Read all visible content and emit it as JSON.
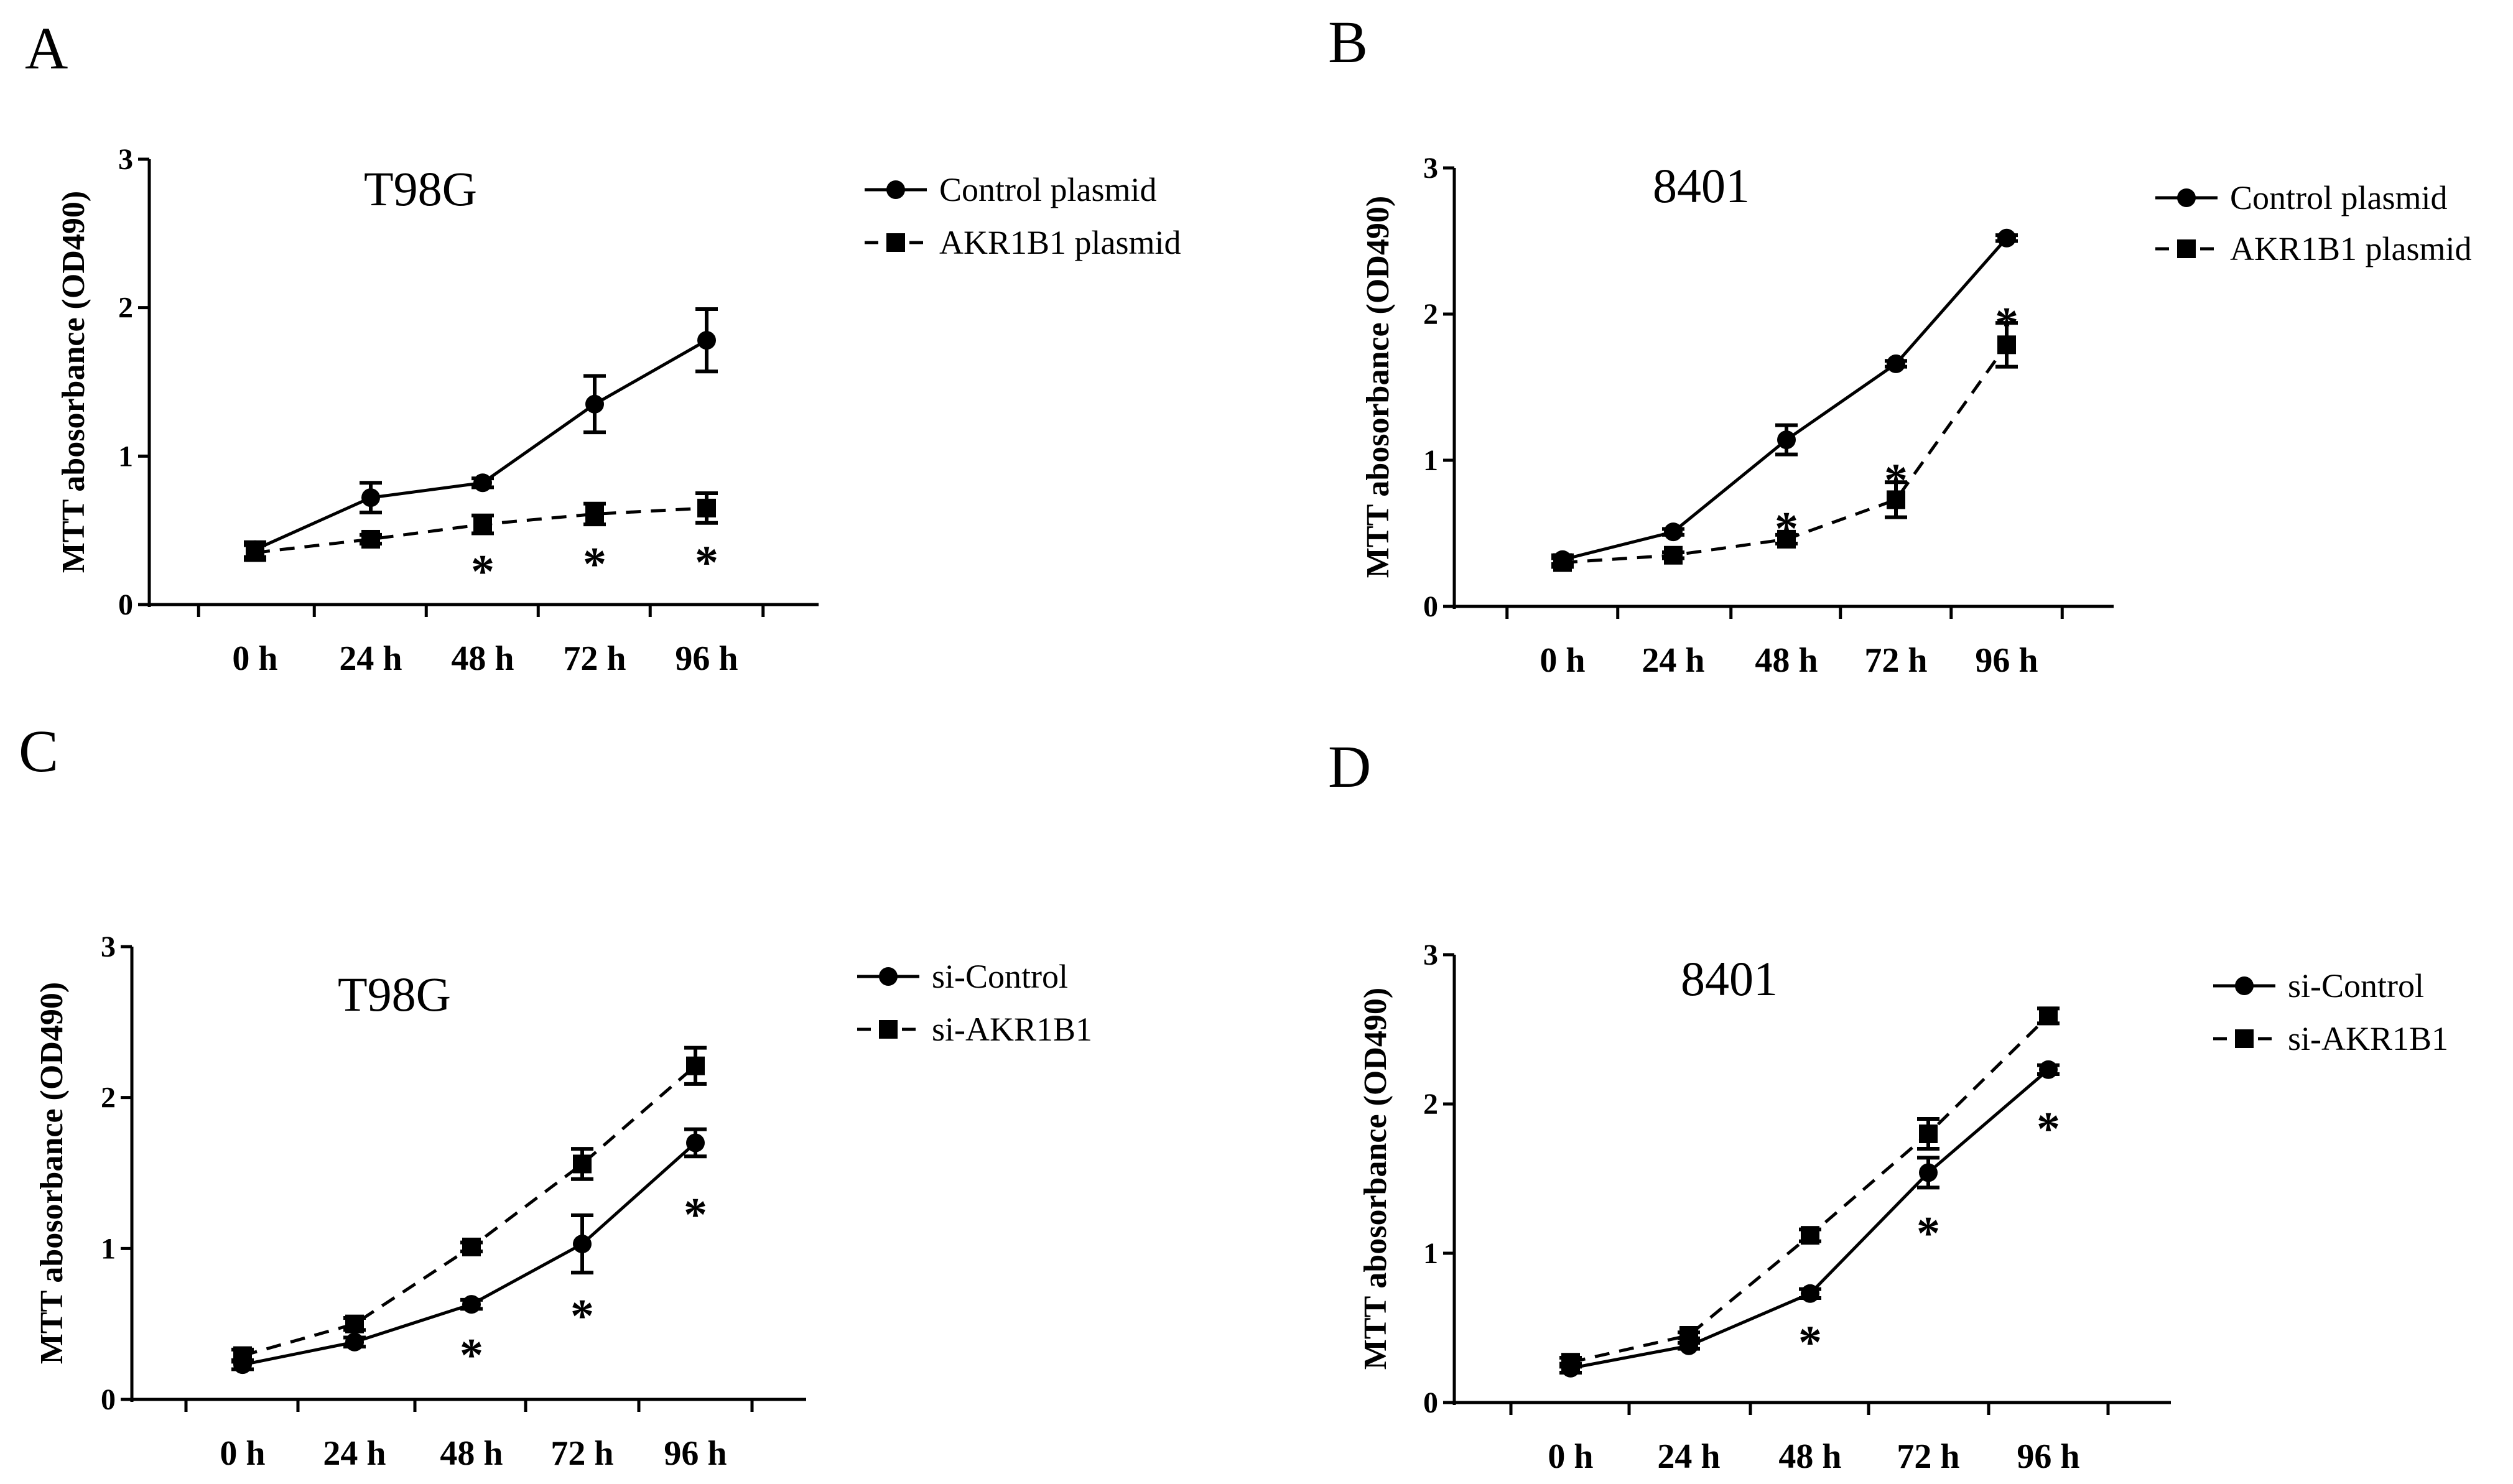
{
  "chart_data": [
    {
      "panel": "A",
      "type": "line",
      "title": "T98G",
      "ylabel": "MTT abosorbance (OD490)",
      "xlabel": "",
      "categories": [
        "0 h",
        "24 h",
        "48 h",
        "72 h",
        "96 h"
      ],
      "ylim": [
        0,
        3
      ],
      "yticks": [
        "0",
        "1",
        "2",
        "3"
      ],
      "series": [
        {
          "name": "Control plasmid",
          "marker": "circle",
          "line": "solid",
          "values": [
            0.37,
            0.72,
            0.82,
            1.35,
            1.78
          ],
          "errors": [
            0.05,
            0.1,
            0.03,
            0.19,
            0.21
          ]
        },
        {
          "name": "AKR1B1 plasmid",
          "marker": "square",
          "line": "dashed",
          "values": [
            0.35,
            0.44,
            0.54,
            0.61,
            0.65
          ],
          "errors": [
            0.05,
            0.03,
            0.06,
            0.07,
            0.1
          ]
        }
      ],
      "annotations": [
        {
          "index": 2,
          "text": "*",
          "y": 0.26
        },
        {
          "index": 3,
          "text": "*",
          "y": 0.31
        },
        {
          "index": 4,
          "text": "*",
          "y": 0.32
        }
      ]
    },
    {
      "panel": "B",
      "type": "line",
      "title": "8401",
      "ylabel": "MTT abosorbance (OD490)",
      "xlabel": "",
      "categories": [
        "0 h",
        "24 h",
        "48 h",
        "72 h",
        "96 h"
      ],
      "ylim": [
        0,
        3
      ],
      "yticks": [
        "0",
        "1",
        "2",
        "3"
      ],
      "series": [
        {
          "name": "Control plasmid",
          "marker": "circle",
          "line": "solid",
          "values": [
            0.32,
            0.51,
            1.14,
            1.66,
            2.52
          ],
          "errors": [
            0.03,
            0.02,
            0.1,
            0.02,
            0.02
          ]
        },
        {
          "name": "AKR1B1 plasmid",
          "marker": "square",
          "line": "dashed",
          "values": [
            0.3,
            0.35,
            0.46,
            0.73,
            1.79
          ],
          "errors": [
            0.03,
            0.02,
            0.03,
            0.12,
            0.15
          ]
        }
      ],
      "annotations": [
        {
          "index": 2,
          "text": "*",
          "y": 0.57
        },
        {
          "index": 3,
          "text": "*",
          "y": 0.9
        },
        {
          "index": 4,
          "text": "*",
          "y": 1.97
        }
      ]
    },
    {
      "panel": "C",
      "type": "line",
      "title": "T98G",
      "ylabel": "MTT abosorbance (OD490)",
      "xlabel": "",
      "categories": [
        "0 h",
        "24 h",
        "48 h",
        "72 h",
        "96 h"
      ],
      "ylim": [
        0,
        3
      ],
      "yticks": [
        "0",
        "1",
        "2",
        "3"
      ],
      "series": [
        {
          "name": "si-Control",
          "marker": "circle",
          "line": "solid",
          "values": [
            0.23,
            0.38,
            0.63,
            1.03,
            1.7
          ],
          "errors": [
            0.03,
            0.03,
            0.03,
            0.19,
            0.09
          ]
        },
        {
          "name": "si-AKR1B1",
          "marker": "square",
          "line": "dashed",
          "values": [
            0.29,
            0.5,
            1.01,
            1.56,
            2.21
          ],
          "errors": [
            0.04,
            0.04,
            0.03,
            0.1,
            0.12
          ]
        }
      ],
      "annotations": [
        {
          "index": 2,
          "text": "*",
          "y": 0.33
        },
        {
          "index": 3,
          "text": "*",
          "y": 0.59
        },
        {
          "index": 4,
          "text": "*",
          "y": 1.26
        }
      ]
    },
    {
      "panel": "D",
      "type": "line",
      "title": "8401",
      "ylabel": "MTT abosorbance (OD490)",
      "xlabel": "",
      "categories": [
        "0 h",
        "24 h",
        "48 h",
        "72 h",
        "96 h"
      ],
      "ylim": [
        0,
        3
      ],
      "yticks": [
        "0",
        "1",
        "2",
        "3"
      ],
      "series": [
        {
          "name": "si-Control",
          "marker": "circle",
          "line": "solid",
          "values": [
            0.23,
            0.38,
            0.73,
            1.54,
            2.23
          ],
          "errors": [
            0.03,
            0.02,
            0.03,
            0.1,
            0.03
          ]
        },
        {
          "name": "si-AKR1B1",
          "marker": "square",
          "line": "dashed",
          "values": [
            0.27,
            0.45,
            1.12,
            1.8,
            2.59
          ],
          "errors": [
            0.03,
            0.02,
            0.04,
            0.1,
            0.05
          ]
        }
      ],
      "annotations": [
        {
          "index": 2,
          "text": "*",
          "y": 0.44
        },
        {
          "index": 3,
          "text": "*",
          "y": 1.17
        },
        {
          "index": 4,
          "text": "*",
          "y": 1.87
        }
      ]
    }
  ],
  "colors": {
    "ink": "#000000",
    "background": "#ffffff"
  }
}
